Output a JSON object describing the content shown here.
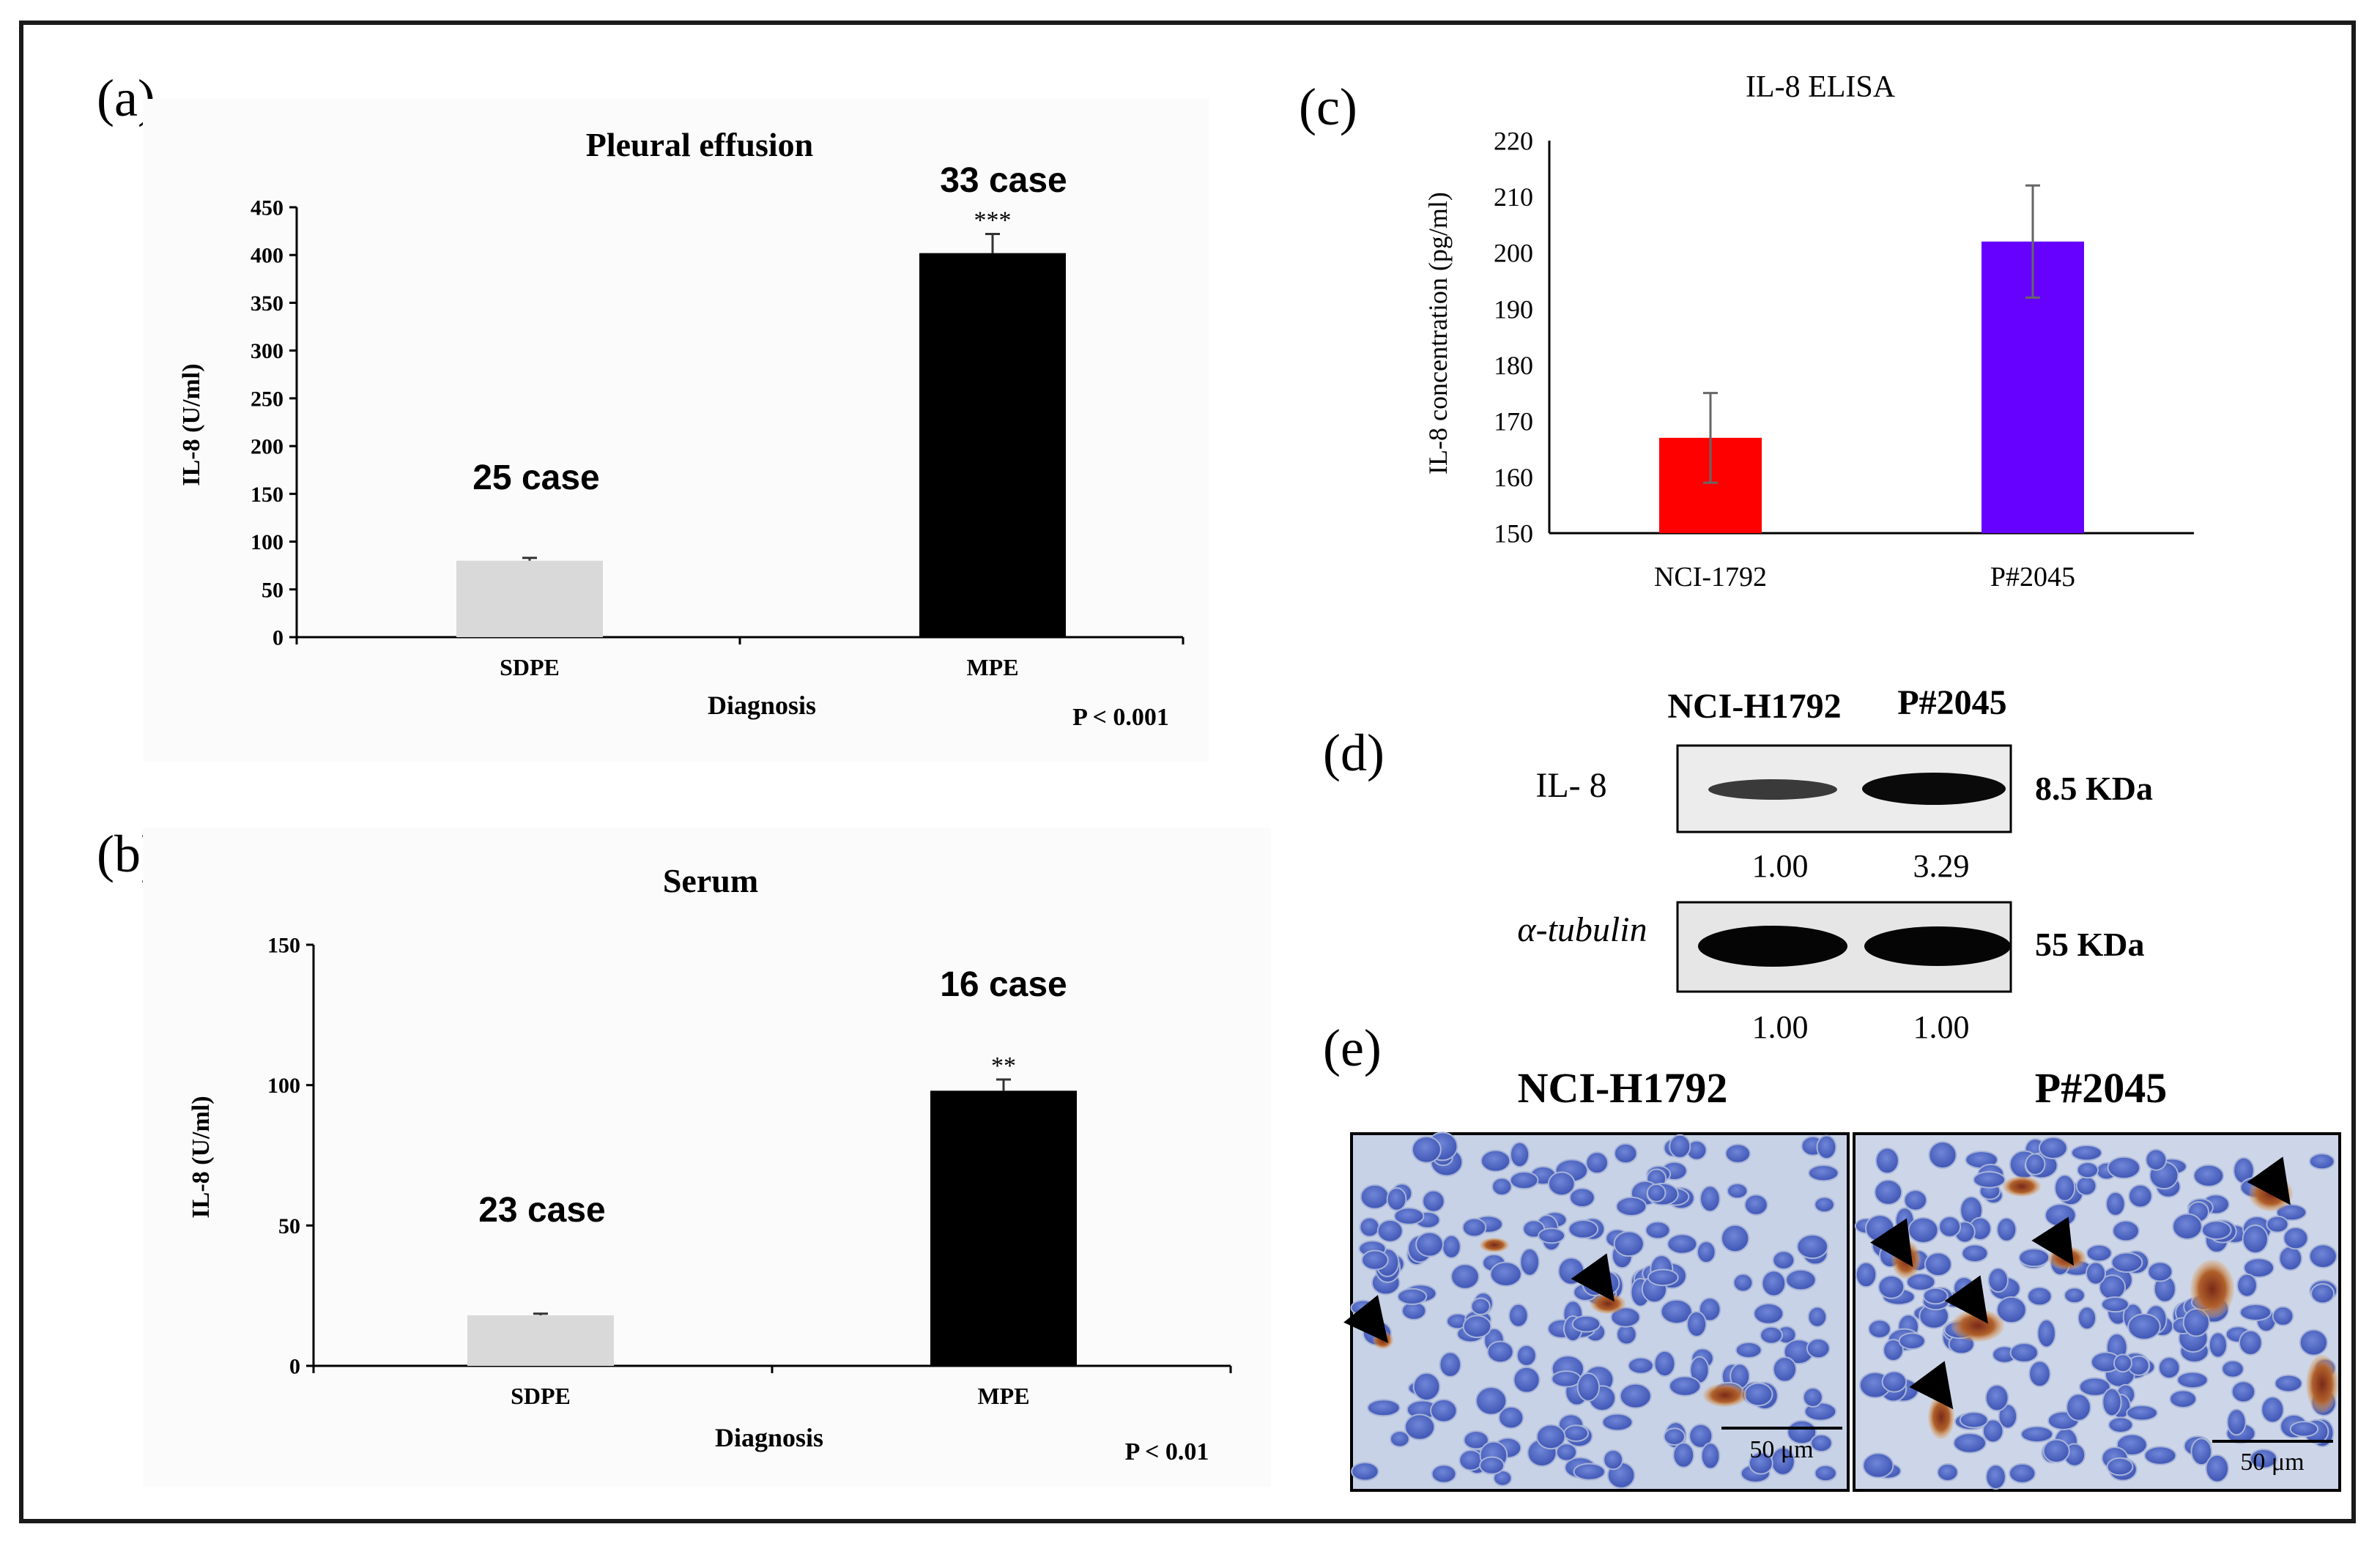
{
  "panel_labels": {
    "a": "(a)",
    "b": "(b)",
    "c": "(c)",
    "d": "(d)",
    "e": "(e)"
  },
  "chart_data": [
    {
      "id": "a",
      "type": "bar",
      "title": "Pleural effusion",
      "categories": [
        "SDPE",
        "MPE"
      ],
      "values": [
        80,
        402
      ],
      "errors": [
        3,
        20
      ],
      "colors": [
        "#d9d9d9",
        "#000000"
      ],
      "ylabel": "IL-8 (U/ml)",
      "xlabel": "Diagnosis",
      "ylim": [
        0,
        450
      ],
      "yticks": [
        0,
        50,
        100,
        150,
        200,
        250,
        300,
        350,
        400,
        450
      ],
      "case_labels": [
        "25 case",
        "33 case"
      ],
      "significance": [
        "",
        "***"
      ],
      "pvalue": "P < 0.001"
    },
    {
      "id": "b",
      "type": "bar",
      "title": "Serum",
      "categories": [
        "SDPE",
        "MPE"
      ],
      "values": [
        18,
        98
      ],
      "errors": [
        0.6,
        4
      ],
      "colors": [
        "#d9d9d9",
        "#000000"
      ],
      "ylabel": "IL-8 (U/ml)",
      "xlabel": "Diagnosis",
      "ylim": [
        0,
        150
      ],
      "yticks": [
        0,
        50,
        100,
        150
      ],
      "case_labels": [
        "23 case",
        "16 case"
      ],
      "significance": [
        "",
        "**"
      ],
      "pvalue": "P < 0.01"
    },
    {
      "id": "c",
      "type": "bar",
      "title": "IL-8 ELISA",
      "categories": [
        "NCI-1792",
        "P#2045"
      ],
      "values": [
        167,
        202
      ],
      "errors": [
        8,
        10
      ],
      "colors": [
        "#ff0000",
        "#6600ff"
      ],
      "ylabel": "IL-8 concentration (pg/ml)",
      "xlabel": "",
      "ylim": [
        150,
        220
      ],
      "yticks": [
        150,
        160,
        170,
        180,
        190,
        200,
        210,
        220
      ]
    }
  ],
  "western_blot": {
    "columns": [
      "NCI-H1792",
      "P#2045"
    ],
    "rows": [
      {
        "label": "IL- 8",
        "size": "8.5 KDa",
        "quant": [
          "1.00",
          "3.29"
        ]
      },
      {
        "label": "α-tubulin",
        "size": "55 KDa",
        "quant": [
          "1.00",
          "1.00"
        ]
      }
    ]
  },
  "ihc": {
    "titles": [
      "NCI-H1792",
      "P#2045"
    ],
    "scale_bar": "50 μm"
  }
}
